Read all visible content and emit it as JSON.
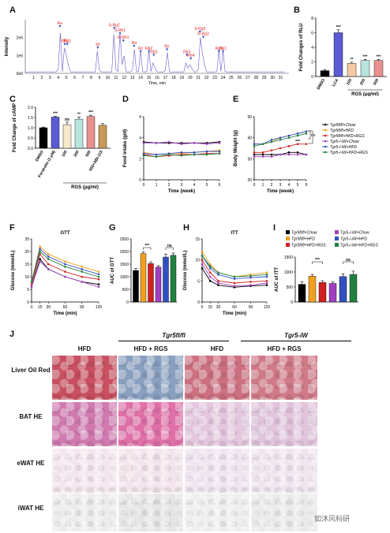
{
  "panels": {
    "A": "A",
    "B": "B",
    "C": "C",
    "D": "D",
    "E": "E",
    "F": "F",
    "G": "G",
    "H": "H",
    "I": "I",
    "J": "J"
  },
  "chart_data": [
    {
      "id": "A",
      "type": "line",
      "ylabel": "Intensity",
      "xlabel": "Time, min",
      "y_ticks": [
        "2e6",
        "1e6",
        "0e0"
      ],
      "x_ticks": [
        "1",
        "2",
        "3",
        "4",
        "5",
        "6",
        "7",
        "8",
        "9",
        "10",
        "11",
        "12",
        "13",
        "14",
        "15",
        "16",
        "17",
        "18",
        "19",
        "20",
        "21",
        "22",
        "23",
        "24",
        "25",
        "26",
        "27",
        "28",
        "29",
        "30",
        "31"
      ],
      "xlim": [
        0,
        32
      ],
      "peaks": [
        {
          "label": "Ra",
          "x": 4.2,
          "y": 2.6
        },
        {
          "label": "Rb1",
          "x": 4.8,
          "y": 1.6
        },
        {
          "label": "Rg3",
          "x": 5.1,
          "y": 1.6
        },
        {
          "label": "Rf",
          "x": 8.8,
          "y": 1.4
        },
        {
          "label": "S-Rg2",
          "x": 10.8,
          "y": 2.5
        },
        {
          "label": "S-Rh1",
          "x": 11.5,
          "y": 2.2
        },
        {
          "label": "R-Rh1",
          "x": 11.9,
          "y": 1.8
        },
        {
          "label": "Rd",
          "x": 13.2,
          "y": 1.5
        },
        {
          "label": "Rc",
          "x": 14.0,
          "y": 1.2
        },
        {
          "label": "Rb2",
          "x": 15.0,
          "y": 1.2
        },
        {
          "label": "Rb3",
          "x": 15.6,
          "y": 1.0
        },
        {
          "label": "Re",
          "x": 17.2,
          "y": 1.3
        },
        {
          "label": "Rk3",
          "x": 19.6,
          "y": 1.0
        },
        {
          "label": "Rh4",
          "x": 20.1,
          "y": 0.8
        },
        {
          "label": "S-Rg3",
          "x": 21.2,
          "y": 2.3
        },
        {
          "label": "R-Rg3",
          "x": 21.6,
          "y": 2.0
        },
        {
          "label": "Rk1",
          "x": 24.0,
          "y": 1.2
        },
        {
          "label": "Rg5",
          "x": 23.5,
          "y": 1.2
        }
      ]
    },
    {
      "id": "B",
      "type": "bar",
      "ylabel": "Fold Changes of RLU",
      "ylim": [
        0,
        8
      ],
      "y_ticks": [
        "0",
        "2",
        "4",
        "6",
        "8"
      ],
      "categories": [
        "DMSO",
        "LCA",
        "100",
        "200",
        "500"
      ],
      "values": [
        0.8,
        6.0,
        1.8,
        2.2,
        2.2
      ],
      "errors": [
        0.15,
        0.4,
        0.15,
        0.15,
        0.15
      ],
      "colors": [
        "#000000",
        "#5b5bd6",
        "#f5c9a3",
        "#b7e4dc",
        "#e89090"
      ],
      "sig": [
        "",
        "***",
        "**",
        "***",
        "***"
      ],
      "group_label": "RGS (μg/ml)"
    },
    {
      "id": "C",
      "type": "bar",
      "ylabel": "Fold Change of cAMP",
      "ylim": [
        0,
        2.0
      ],
      "y_ticks": [
        "0.0",
        "0.5",
        "1.0",
        "1.5",
        "2.0"
      ],
      "categories": [
        "DMSO",
        "Forskolin (1 μM)",
        "100",
        "200",
        "500",
        "500+SBI-115"
      ],
      "values": [
        1.0,
        1.52,
        1.15,
        1.42,
        1.55,
        1.12
      ],
      "errors": [
        0.03,
        0.04,
        0.12,
        0.1,
        0.06,
        0.08
      ],
      "colors": [
        "#000000",
        "#5b5bd6",
        "#f5e9c9",
        "#b7e4dc",
        "#e89090",
        "#c79a55"
      ],
      "sig": [
        "",
        "***",
        "ns",
        "**",
        "***",
        ""
      ],
      "group_label": "RGS (μg/ml)"
    },
    {
      "id": "D",
      "type": "line",
      "ylabel": "Food intake (g/d)",
      "xlabel": "Time (week)",
      "ylim": [
        0,
        6
      ],
      "y_ticks": [
        "0",
        "2",
        "4",
        "6"
      ],
      "x": [
        0,
        1,
        2,
        3,
        4,
        5,
        6
      ],
      "series": [
        {
          "color": "#000000",
          "values": [
            3.6,
            3.5,
            3.5,
            3.5,
            3.5,
            3.5,
            3.6
          ]
        },
        {
          "color": "#f0a020",
          "values": [
            2.6,
            2.4,
            2.5,
            2.5,
            2.6,
            2.7,
            2.8
          ]
        },
        {
          "color": "#d02020",
          "values": [
            2.4,
            2.2,
            2.3,
            2.4,
            2.4,
            2.5,
            2.5
          ]
        },
        {
          "color": "#a040c0",
          "values": [
            3.5,
            3.5,
            3.6,
            3.4,
            3.5,
            3.4,
            3.5
          ]
        },
        {
          "color": "#3050c0",
          "values": [
            2.5,
            2.4,
            2.5,
            2.6,
            2.6,
            2.7,
            2.7
          ]
        },
        {
          "color": "#208040",
          "values": [
            2.3,
            2.2,
            2.4,
            2.3,
            2.4,
            2.4,
            2.5
          ]
        }
      ]
    },
    {
      "id": "E",
      "type": "line",
      "ylabel": "Body Weight (g)",
      "xlabel": "Time (week)",
      "ylim": [
        20,
        50
      ],
      "y_ticks": [
        "20",
        "30",
        "40",
        "50"
      ],
      "x": [
        0,
        1,
        2,
        3,
        4,
        5,
        6
      ],
      "series": [
        {
          "name": "Tgr5fl/fl+Chow",
          "color": "#000000",
          "values": [
            32,
            32,
            32,
            32,
            33,
            33,
            32
          ]
        },
        {
          "name": "Tgr5fl/fl+HFD",
          "color": "#f0a020",
          "values": [
            37,
            37,
            38,
            40,
            41,
            42,
            43
          ]
        },
        {
          "name": "Tgr5fl/fl+HFD+RGS",
          "color": "#d02020",
          "values": [
            33,
            33,
            34,
            35,
            36,
            37,
            37
          ]
        },
        {
          "name": "Tgr5-/-iW+Chow",
          "color": "#a040c0",
          "values": [
            31,
            31,
            31,
            32,
            32,
            32,
            32
          ]
        },
        {
          "name": "Tgr5-/-iW+HFD",
          "color": "#3050c0",
          "values": [
            37,
            37,
            39,
            40,
            41,
            42,
            43
          ]
        },
        {
          "name": "Tgr5-/-iW+HFD+RGS",
          "color": "#208040",
          "values": [
            36,
            37,
            38,
            39,
            40,
            41,
            42
          ]
        }
      ],
      "sig": [
        "ns",
        "***"
      ]
    },
    {
      "id": "F",
      "type": "line",
      "title": "GTT",
      "ylabel": "Glucose (mmol/L)",
      "xlabel": "Time (min)",
      "ylim": [
        0,
        25
      ],
      "y_ticks": [
        "0",
        "5",
        "10",
        "15",
        "20",
        "25"
      ],
      "x": [
        0,
        15,
        30,
        60,
        90,
        120
      ],
      "series": [
        {
          "color": "#000000",
          "values": [
            6,
            17,
            13,
            10,
            8,
            7
          ]
        },
        {
          "color": "#f0a020",
          "values": [
            8,
            22,
            19,
            16,
            14,
            12
          ]
        },
        {
          "color": "#d02020",
          "values": [
            7,
            19,
            15,
            12,
            10,
            9
          ]
        },
        {
          "color": "#a040c0",
          "values": [
            6,
            16,
            13,
            10,
            8,
            6
          ]
        },
        {
          "color": "#3050c0",
          "values": [
            8,
            21,
            18,
            15,
            13,
            11
          ]
        },
        {
          "color": "#208040",
          "values": [
            8,
            20,
            17,
            14,
            12,
            10
          ]
        }
      ]
    },
    {
      "id": "G",
      "type": "bar",
      "ylabel": "AUC of GTT",
      "ylim": [
        0,
        2500
      ],
      "y_ticks": [
        "0",
        "500",
        "1000",
        "1500",
        "2000",
        "2500"
      ],
      "values": [
        1250,
        1920,
        1520,
        1380,
        1780,
        1850
      ],
      "errors": [
        80,
        60,
        70,
        60,
        120,
        90
      ],
      "colors": [
        "#000000",
        "#f0a020",
        "#d02020",
        "#a040c0",
        "#3050c0",
        "#208040"
      ],
      "sig": [
        "***",
        "ns"
      ]
    },
    {
      "id": "H",
      "type": "line",
      "title": "ITT",
      "ylabel": "Glucose (mmol/L)",
      "xlabel": "Time (min)",
      "ylim": [
        0,
        15
      ],
      "y_ticks": [
        "0",
        "5",
        "10",
        "15"
      ],
      "x": [
        0,
        15,
        30,
        60,
        90,
        120
      ],
      "series": [
        {
          "color": "#000000",
          "values": [
            8,
            5,
            4,
            3.5,
            3.8,
            4
          ]
        },
        {
          "color": "#f0a020",
          "values": [
            12,
            9,
            7,
            6,
            6.5,
            7
          ]
        },
        {
          "color": "#d02020",
          "values": [
            10,
            7,
            5,
            4.5,
            4.8,
            5
          ]
        },
        {
          "color": "#a040c0",
          "values": [
            9,
            6,
            4.5,
            3.8,
            4,
            4.5
          ]
        },
        {
          "color": "#3050c0",
          "values": [
            11,
            8,
            6.5,
            5.5,
            5.8,
            6
          ]
        },
        {
          "color": "#208040",
          "values": [
            11,
            8.5,
            7,
            6,
            6.2,
            6.5
          ]
        }
      ]
    },
    {
      "id": "I",
      "type": "bar",
      "ylabel": "AUC of ITT",
      "ylim": [
        0,
        1500
      ],
      "y_ticks": [
        "0",
        "500",
        "1000",
        "1500"
      ],
      "values": [
        590,
        860,
        650,
        620,
        850,
        920
      ],
      "errors": [
        90,
        60,
        60,
        50,
        90,
        110
      ],
      "colors": [
        "#000000",
        "#f0a020",
        "#d02020",
        "#a040c0",
        "#3050c0",
        "#208040"
      ],
      "sig": [
        "***",
        "ns"
      ],
      "legend": [
        "Tgr5fl/fl+Chow",
        "Tgr5-/-iW+Chow",
        "Tgr5fl/fl+HFD",
        "Tgr5-/-iW+HFD",
        "Tgr5fl/fl+HFD+RGS",
        "Tgr5-/-iW+HFD+RGS"
      ]
    }
  ],
  "histology": {
    "genotypes": [
      "Tgr5fl/fl",
      "Tgr5-iW"
    ],
    "columns": [
      "HFD",
      "HFD + RGS",
      "HFD",
      "HFD + RGS"
    ],
    "rows": [
      {
        "label": "Liver Oil Red",
        "fills": [
          "#c85060",
          "#8aa0c0",
          "#cc7080",
          "#d07a88"
        ]
      },
      {
        "label": "BAT HE",
        "fills": [
          "#d07ab0",
          "#e070a8",
          "#e3c7de",
          "#e0c4dc"
        ]
      },
      {
        "label": "eWAT HE",
        "fills": [
          "#f4e6ee",
          "#f3e4ec",
          "#efe4ef",
          "#efe5ef"
        ]
      },
      {
        "label": "iWAT HE",
        "fills": [
          "#ececec",
          "#e5e5e5",
          "#eeeeee",
          "#eaeaea"
        ]
      }
    ]
  },
  "watermark": "如沐风科研"
}
